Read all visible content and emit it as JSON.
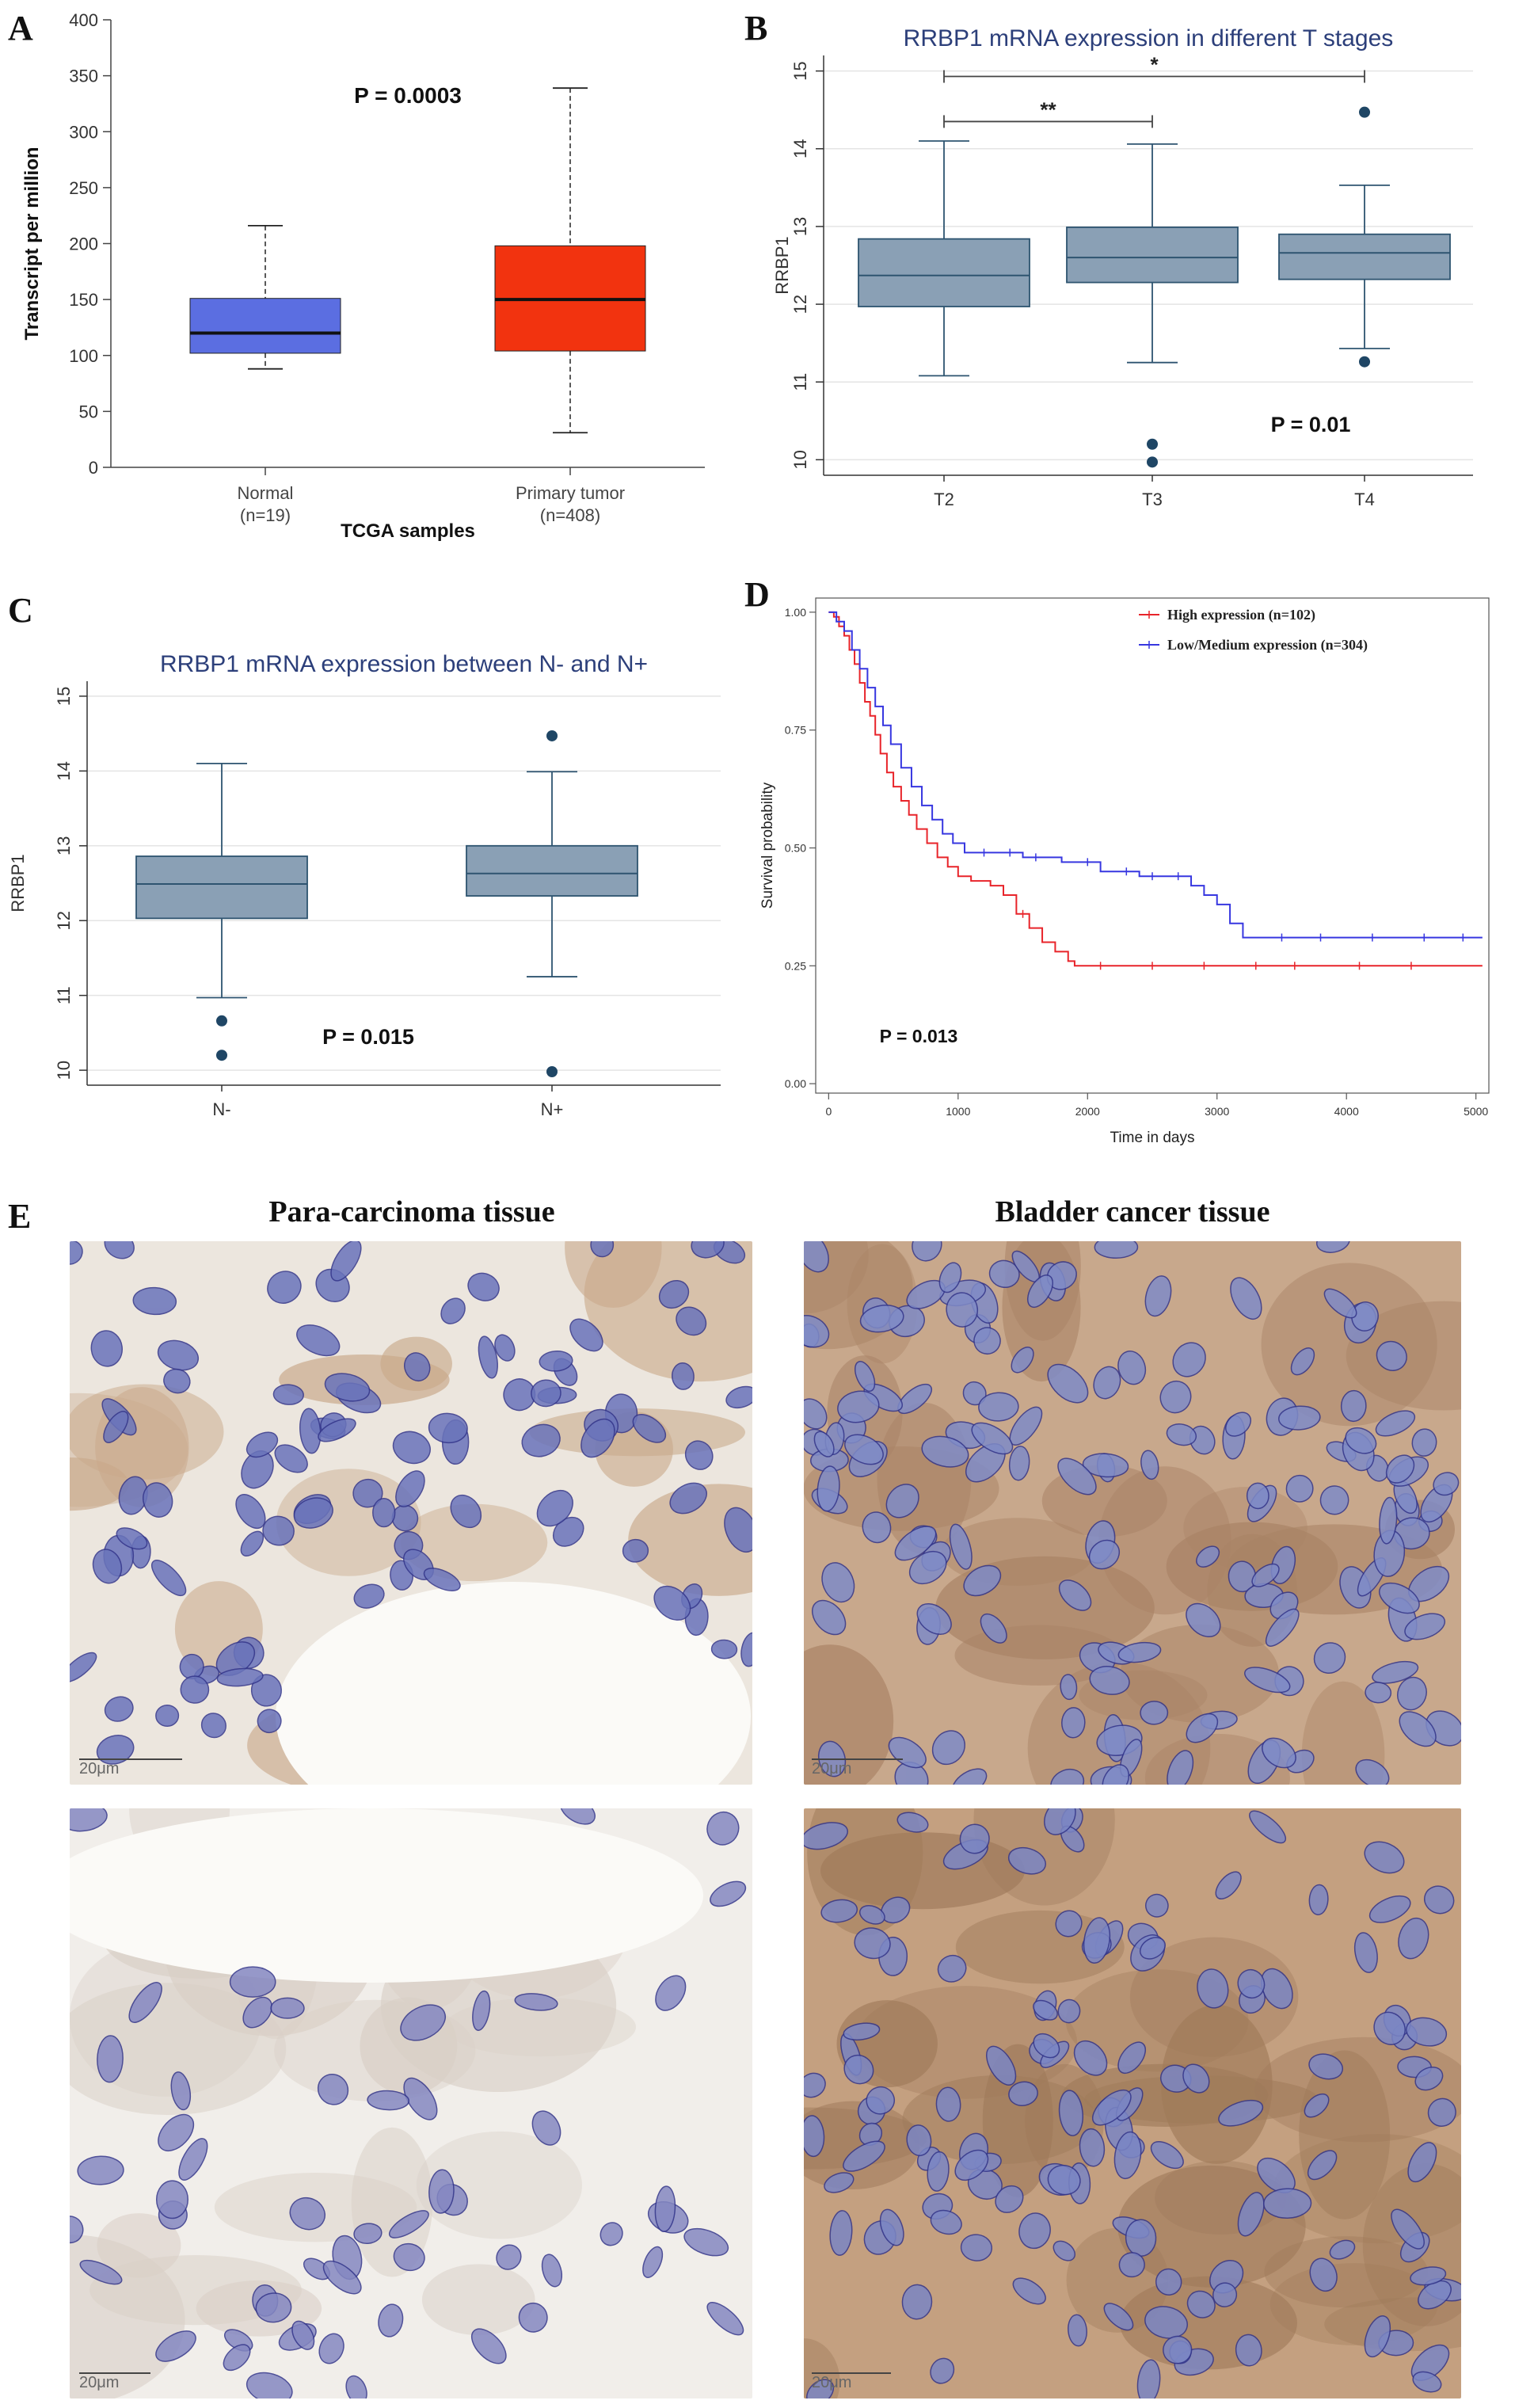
{
  "panel_letters": {
    "a": "A",
    "b": "B",
    "c": "C",
    "d": "D",
    "e": "E"
  },
  "chart_data": [
    {
      "id": "A",
      "type": "box",
      "title": "",
      "xlabel": "TCGA samples",
      "ylabel": "Transcript per million",
      "ylim": [
        0,
        400
      ],
      "yticks": [
        0,
        50,
        100,
        150,
        200,
        250,
        300,
        350,
        400
      ],
      "annotation": "P = 0.0003",
      "categories": [
        {
          "name": "Normal",
          "n": "(n=19)",
          "min": 88,
          "q1": 102,
          "median": 120,
          "q3": 151,
          "max": 216,
          "color": "#5b6ee1"
        },
        {
          "name": "Primary tumor",
          "n": "(n=408)",
          "min": 31,
          "q1": 104,
          "median": 150,
          "q3": 198,
          "max": 339,
          "color": "#f2330f"
        }
      ]
    },
    {
      "id": "B",
      "type": "box",
      "title": "RRBP1 mRNA expression in different T stages",
      "xlabel": "",
      "ylabel": "RRBP1",
      "ylim": [
        9.8,
        15.2
      ],
      "yticks": [
        10,
        11,
        12,
        13,
        14,
        15
      ],
      "annotation": "P = 0.01",
      "box_color": "#8aa0b5",
      "categories": [
        {
          "name": "T2",
          "min": 11.08,
          "q1": 11.97,
          "median": 12.37,
          "q3": 12.84,
          "max": 14.1,
          "outliers": []
        },
        {
          "name": "T3",
          "min": 11.25,
          "q1": 12.28,
          "median": 12.6,
          "q3": 12.99,
          "max": 14.06,
          "outliers": [
            10.2,
            9.97
          ]
        },
        {
          "name": "T4",
          "min": 11.43,
          "q1": 12.32,
          "median": 12.66,
          "q3": 12.9,
          "max": 13.53,
          "outliers": [
            14.47,
            11.26
          ]
        }
      ],
      "brackets": [
        {
          "from": "T2",
          "to": "T4",
          "label": "*",
          "y": 14.93
        },
        {
          "from": "T2",
          "to": "T3",
          "label": "**",
          "y": 14.35
        }
      ]
    },
    {
      "id": "C",
      "type": "box",
      "title": "RRBP1 mRNA expression between N- and N+",
      "xlabel": "",
      "ylabel": "RRBP1",
      "ylim": [
        9.8,
        15.2
      ],
      "yticks": [
        10,
        11,
        12,
        13,
        14,
        15
      ],
      "annotation": "P = 0.015",
      "box_color": "#8aa0b5",
      "categories": [
        {
          "name": "N-",
          "min": 10.97,
          "q1": 12.03,
          "median": 12.49,
          "q3": 12.86,
          "max": 14.1,
          "outliers": [
            10.66,
            10.2
          ]
        },
        {
          "name": "N+",
          "min": 11.25,
          "q1": 12.33,
          "median": 12.63,
          "q3": 13.0,
          "max": 13.99,
          "outliers": [
            14.47,
            9.98
          ]
        }
      ]
    },
    {
      "id": "D",
      "type": "line",
      "title": "",
      "xlabel": "Time in days",
      "ylabel": "Survival probability",
      "xlim": [
        -100,
        5100
      ],
      "ylim": [
        -0.02,
        1.03
      ],
      "xticks": [
        0,
        1000,
        2000,
        3000,
        4000,
        5000
      ],
      "yticks": [
        "0.00",
        "0.25",
        "0.50",
        "0.75",
        "1.00"
      ],
      "annotation": "P = 0.013",
      "legend_position": "top-right",
      "series": [
        {
          "name": "High expression (n=102)",
          "color": "#e8242a",
          "points": [
            [
              0,
              1.0
            ],
            [
              40,
              0.99
            ],
            [
              80,
              0.97
            ],
            [
              120,
              0.95
            ],
            [
              160,
              0.92
            ],
            [
              200,
              0.89
            ],
            [
              240,
              0.85
            ],
            [
              280,
              0.81
            ],
            [
              320,
              0.78
            ],
            [
              360,
              0.74
            ],
            [
              400,
              0.7
            ],
            [
              450,
              0.66
            ],
            [
              500,
              0.63
            ],
            [
              560,
              0.6
            ],
            [
              620,
              0.57
            ],
            [
              680,
              0.54
            ],
            [
              760,
              0.51
            ],
            [
              840,
              0.48
            ],
            [
              920,
              0.46
            ],
            [
              1000,
              0.44
            ],
            [
              1100,
              0.43
            ],
            [
              1250,
              0.42
            ],
            [
              1350,
              0.4
            ],
            [
              1450,
              0.36
            ],
            [
              1550,
              0.33
            ],
            [
              1650,
              0.3
            ],
            [
              1750,
              0.28
            ],
            [
              1850,
              0.26
            ],
            [
              1900,
              0.25
            ],
            [
              5050,
              0.25
            ]
          ],
          "censors": [
            1500,
            2100,
            2500,
            2900,
            3300,
            3600,
            4100,
            4500
          ]
        },
        {
          "name": "Low/Medium expression (n=304)",
          "color": "#3737e0",
          "points": [
            [
              0,
              1.0
            ],
            [
              60,
              0.98
            ],
            [
              120,
              0.96
            ],
            [
              180,
              0.92
            ],
            [
              240,
              0.88
            ],
            [
              300,
              0.84
            ],
            [
              360,
              0.8
            ],
            [
              420,
              0.76
            ],
            [
              480,
              0.72
            ],
            [
              560,
              0.67
            ],
            [
              640,
              0.63
            ],
            [
              720,
              0.59
            ],
            [
              800,
              0.56
            ],
            [
              880,
              0.53
            ],
            [
              960,
              0.51
            ],
            [
              1050,
              0.49
            ],
            [
              1250,
              0.49
            ],
            [
              1500,
              0.48
            ],
            [
              1800,
              0.47
            ],
            [
              2100,
              0.45
            ],
            [
              2400,
              0.44
            ],
            [
              2650,
              0.44
            ],
            [
              2800,
              0.42
            ],
            [
              2900,
              0.4
            ],
            [
              3000,
              0.38
            ],
            [
              3100,
              0.34
            ],
            [
              3200,
              0.31
            ],
            [
              5050,
              0.31
            ]
          ],
          "censors": [
            1200,
            1400,
            1600,
            2000,
            2300,
            2500,
            2700,
            3500,
            3800,
            4200,
            4600,
            4900
          ]
        }
      ]
    }
  ],
  "panel_e": {
    "left_title": "Para-carcinoma tissue",
    "right_title": "Bladder cancer tissue",
    "scale_labels": [
      "20μm",
      "20μm",
      "20μm",
      "20μm"
    ]
  }
}
